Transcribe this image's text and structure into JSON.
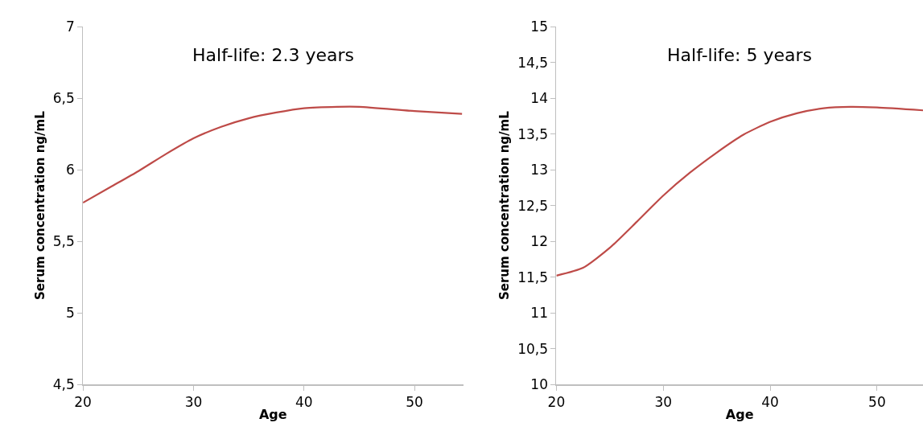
{
  "chart_data": [
    {
      "type": "line",
      "title": "Half-life: 2.3 years",
      "xlabel": "Age",
      "ylabel": "Serum concentration ng/mL",
      "x": [
        20,
        22.5,
        25,
        27.5,
        30,
        32.5,
        35,
        37.5,
        40,
        43,
        45,
        50,
        54.3
      ],
      "series": [
        {
          "color": "#be4b48",
          "values": [
            5.77,
            5.88,
            5.99,
            6.11,
            6.22,
            6.3,
            6.36,
            6.4,
            6.43,
            6.44,
            6.44,
            6.41,
            6.39
          ]
        }
      ],
      "xlim": [
        20,
        54.4
      ],
      "xticks": [
        20,
        30,
        40,
        50
      ],
      "ylim": [
        4.5,
        7
      ],
      "yticks": [
        {
          "value": 4.5,
          "label": "4,5"
        },
        5,
        {
          "value": 5.5,
          "label": "5,5"
        },
        6,
        {
          "value": 6.5,
          "label": "6,5"
        },
        7
      ],
      "grid": false,
      "marker": "none",
      "line_style": "solid"
    },
    {
      "type": "line",
      "title": "Half-life: 5 years",
      "xlabel": "Age",
      "ylabel": "Serum concentration ng/mL",
      "x": [
        20,
        22.5,
        25,
        27.5,
        30,
        32.5,
        35,
        37.5,
        40,
        42.5,
        45,
        47.5,
        50,
        54.3
      ],
      "series": [
        {
          "color": "#be4b48",
          "values": [
            11.52,
            11.63,
            11.91,
            12.27,
            12.64,
            12.96,
            13.24,
            13.49,
            13.67,
            13.79,
            13.86,
            13.88,
            13.87,
            13.83
          ]
        }
      ],
      "xlim": [
        20,
        54.3
      ],
      "xticks": [
        20,
        30,
        40,
        50
      ],
      "ylim": [
        10,
        15
      ],
      "yticks": [
        10,
        {
          "value": 10.5,
          "label": "10,5"
        },
        11,
        {
          "value": 11.5,
          "label": "11,5"
        },
        12,
        {
          "value": 12.5,
          "label": "12,5"
        },
        13,
        {
          "value": 13.5,
          "label": "13,5"
        },
        14,
        {
          "value": 14.5,
          "label": "14,5"
        },
        15
      ],
      "grid": false,
      "marker": "none",
      "line_style": "solid"
    }
  ]
}
